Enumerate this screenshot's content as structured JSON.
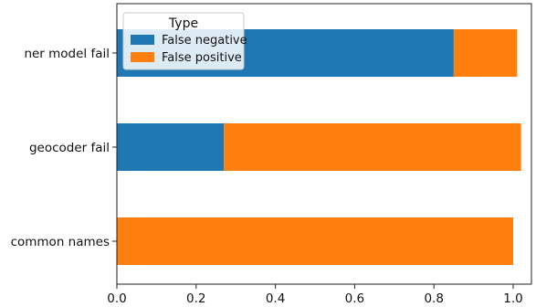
{
  "chart_data": {
    "type": "bar",
    "orientation": "horizontal",
    "stacked": true,
    "categories": [
      "ner model fail",
      "geocoder fail",
      "common names"
    ],
    "series": [
      {
        "name": "False negative",
        "color": "#1f77b4",
        "values": [
          0.85,
          0.27,
          0.0
        ]
      },
      {
        "name": "False positive",
        "color": "#ff7f0e",
        "values": [
          0.16,
          0.75,
          1.0
        ]
      }
    ],
    "xlim": [
      0.0,
      1.03
    ],
    "xticks": [
      "0.0",
      "0.2",
      "0.4",
      "0.6",
      "0.8",
      "1.0"
    ],
    "xtick_values": [
      0.0,
      0.2,
      0.4,
      0.6,
      0.8,
      1.0
    ],
    "xlabel": "",
    "ylabel": "",
    "grid": false,
    "legend": {
      "title": "Type",
      "placement": "top-left",
      "entries": [
        "False negative",
        "False positive"
      ]
    }
  }
}
